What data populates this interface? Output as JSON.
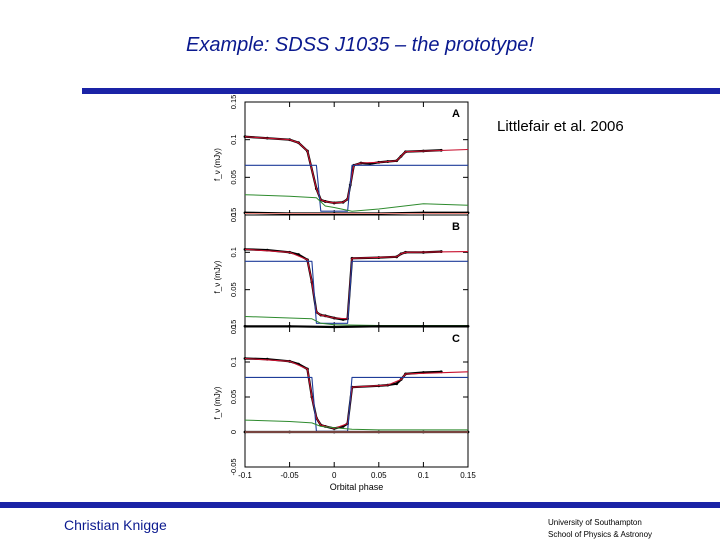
{
  "slide": {
    "title": "Example: SDSS J1035 – the prototype!",
    "citation": "Littlefair et al. 2006",
    "footer_left": "Christian Knigge",
    "footer_right_line1": "University of Southampton",
    "footer_right_line2": "School of Physics & Astronoy",
    "accent_color": "#1a23a6"
  },
  "chart_data": {
    "type": "line",
    "xlabel": "Orbital phase",
    "xlim": [
      -0.1,
      0.15
    ],
    "xticks": [
      -0.1,
      -0.05,
      0,
      0.05,
      0.1,
      0.15
    ],
    "xtick_labels": [
      "-0.1",
      "-0.05",
      "0",
      "0.05",
      "0.1",
      "0.15"
    ],
    "ylabel": "f_ν (mJy)",
    "colors": {
      "data": "#000000",
      "model": "#c8102e",
      "white_dwarf": "#1f3d99",
      "disc": "#2e8b2e",
      "residual": "#f08a80"
    },
    "panels": [
      {
        "label": "A",
        "ylim": [
          0,
          0.15
        ],
        "yticks": [
          0,
          0.05,
          0.1,
          0.15
        ],
        "ytick_labels": [
          "0",
          "0.05",
          "0.1",
          "0.15"
        ],
        "series": [
          {
            "role": "data",
            "x": [
              -0.1,
              -0.075,
              -0.05,
              -0.04,
              -0.03,
              -0.02,
              -0.015,
              -0.01,
              0.0,
              0.01,
              0.015,
              0.018,
              0.022,
              0.03,
              0.04,
              0.05,
              0.06,
              0.07,
              0.075,
              0.08,
              0.1,
              0.12
            ],
            "y": [
              0.104,
              0.102,
              0.1,
              0.096,
              0.085,
              0.035,
              0.02,
              0.018,
              0.016,
              0.017,
              0.021,
              0.04,
              0.066,
              0.069,
              0.068,
              0.07,
              0.071,
              0.072,
              0.078,
              0.084,
              0.085,
              0.086
            ]
          },
          {
            "role": "model",
            "x": [
              -0.1,
              -0.05,
              -0.04,
              -0.03,
              -0.02,
              -0.015,
              -0.01,
              0.0,
              0.01,
              0.015,
              0.018,
              0.022,
              0.03,
              0.05,
              0.07,
              0.075,
              0.08,
              0.15
            ],
            "y": [
              0.104,
              0.1,
              0.096,
              0.085,
              0.035,
              0.02,
              0.018,
              0.016,
              0.017,
              0.021,
              0.04,
              0.066,
              0.069,
              0.07,
              0.072,
              0.078,
              0.084,
              0.087
            ]
          },
          {
            "role": "white_dwarf",
            "x": [
              -0.1,
              -0.02,
              -0.015,
              0.015,
              0.02,
              0.15
            ],
            "y": [
              0.066,
              0.066,
              0.005,
              0.005,
              0.066,
              0.066
            ]
          },
          {
            "role": "disc",
            "x": [
              -0.1,
              -0.05,
              -0.02,
              -0.01,
              0.0,
              0.02,
              0.05,
              0.1,
              0.15
            ],
            "y": [
              0.027,
              0.025,
              0.023,
              0.012,
              0.01,
              0.005,
              0.008,
              0.015,
              0.013
            ]
          },
          {
            "role": "residual_data",
            "x": [
              -0.1,
              -0.05,
              0.0,
              0.05,
              0.1,
              0.15
            ],
            "y": [
              0.003,
              0.002,
              0.002,
              0.002,
              0.003,
              0.003
            ]
          },
          {
            "role": "residual_model",
            "x": [
              -0.1,
              0.15
            ],
            "y": [
              0.002,
              0.002
            ]
          }
        ]
      },
      {
        "label": "B",
        "ylim": [
          0,
          0.15
        ],
        "yticks": [
          0,
          0.05,
          0.1,
          0.15
        ],
        "ytick_labels": [
          "0",
          "0.05",
          "0.1",
          "0.15"
        ],
        "series": [
          {
            "role": "data",
            "x": [
              -0.1,
              -0.075,
              -0.05,
              -0.04,
              -0.03,
              -0.025,
              -0.02,
              -0.015,
              -0.01,
              0.0,
              0.01,
              0.015,
              0.02,
              0.05,
              0.07,
              0.075,
              0.08,
              0.1,
              0.12
            ],
            "y": [
              0.104,
              0.103,
              0.1,
              0.097,
              0.09,
              0.06,
              0.02,
              0.016,
              0.015,
              0.012,
              0.01,
              0.011,
              0.092,
              0.093,
              0.094,
              0.098,
              0.1,
              0.1,
              0.101
            ]
          },
          {
            "role": "model",
            "x": [
              -0.1,
              -0.05,
              -0.03,
              -0.025,
              -0.02,
              -0.015,
              0.0,
              0.015,
              0.02,
              0.07,
              0.075,
              0.08,
              0.15
            ],
            "y": [
              0.104,
              0.1,
              0.09,
              0.06,
              0.02,
              0.016,
              0.012,
              0.011,
              0.092,
              0.094,
              0.098,
              0.1,
              0.101
            ]
          },
          {
            "role": "white_dwarf",
            "x": [
              -0.1,
              -0.025,
              -0.02,
              0.015,
              0.02,
              0.15
            ],
            "y": [
              0.088,
              0.088,
              0.005,
              0.005,
              0.088,
              0.088
            ]
          },
          {
            "role": "disc",
            "x": [
              -0.1,
              -0.05,
              -0.025,
              -0.015,
              0.0,
              0.05,
              0.1,
              0.15
            ],
            "y": [
              0.014,
              0.012,
              0.011,
              0.005,
              0.003,
              0.002,
              0.002,
              0.002
            ]
          },
          {
            "role": "residual_data",
            "x": [
              -0.1,
              -0.05,
              0.0,
              0.05,
              0.1,
              0.15
            ],
            "y": [
              0.001,
              0.001,
              0.0,
              0.001,
              0.001,
              0.001
            ]
          },
          {
            "role": "residual_model",
            "x": [
              -0.1,
              0.15
            ],
            "y": [
              0.0,
              0.0
            ]
          }
        ]
      },
      {
        "label": "C",
        "ylim": [
          -0.05,
          0.15
        ],
        "yticks": [
          -0.05,
          0,
          0.05,
          0.1,
          0.15
        ],
        "ytick_labels": [
          "-0.05",
          "0",
          "0.05",
          "0.1",
          "0.15"
        ],
        "series": [
          {
            "role": "data",
            "x": [
              -0.1,
              -0.075,
              -0.05,
              -0.04,
              -0.03,
              -0.025,
              -0.02,
              -0.015,
              -0.01,
              0.0,
              0.01,
              0.015,
              0.02,
              0.05,
              0.06,
              0.07,
              0.075,
              0.08,
              0.1,
              0.12
            ],
            "y": [
              0.105,
              0.104,
              0.101,
              0.097,
              0.09,
              0.05,
              0.02,
              0.01,
              0.008,
              0.005,
              0.008,
              0.012,
              0.064,
              0.066,
              0.067,
              0.069,
              0.075,
              0.083,
              0.085,
              0.086
            ]
          },
          {
            "role": "model",
            "x": [
              -0.1,
              -0.05,
              -0.03,
              -0.025,
              -0.02,
              -0.015,
              0.0,
              0.015,
              0.02,
              0.06,
              0.075,
              0.08,
              0.15
            ],
            "y": [
              0.105,
              0.101,
              0.09,
              0.05,
              0.02,
              0.01,
              0.005,
              0.012,
              0.064,
              0.067,
              0.075,
              0.083,
              0.086
            ]
          },
          {
            "role": "white_dwarf",
            "x": [
              -0.1,
              -0.025,
              -0.02,
              0.015,
              0.02,
              0.15
            ],
            "y": [
              0.078,
              0.078,
              0.001,
              0.001,
              0.078,
              0.078
            ]
          },
          {
            "role": "disc",
            "x": [
              -0.1,
              -0.05,
              -0.025,
              -0.015,
              0.0,
              0.02,
              0.05,
              0.1,
              0.15
            ],
            "y": [
              0.017,
              0.015,
              0.013,
              0.008,
              0.006,
              0.004,
              0.003,
              0.003,
              0.003
            ]
          },
          {
            "role": "residual_data",
            "x": [
              -0.1,
              -0.05,
              0.0,
              0.05,
              0.1,
              0.15
            ],
            "y": [
              0.0,
              0.0,
              0.0,
              0.0,
              0.0,
              0.0
            ]
          },
          {
            "role": "residual_model",
            "x": [
              -0.1,
              0.15
            ],
            "y": [
              0.0,
              0.0
            ]
          }
        ]
      }
    ]
  }
}
